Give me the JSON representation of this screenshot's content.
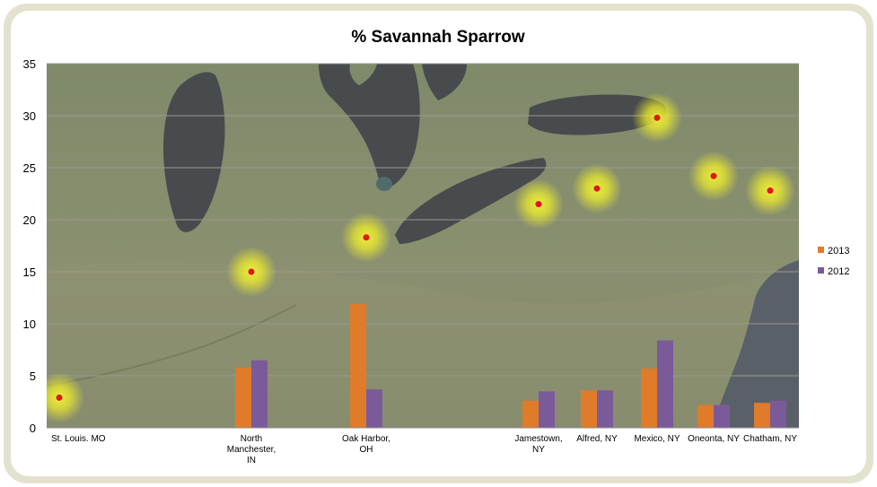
{
  "chart_data": {
    "type": "bar",
    "title": "% Savannah Sparrow",
    "xlabel": "",
    "ylabel": "",
    "ylim": [
      0,
      35
    ],
    "yticks": [
      0,
      5,
      10,
      15,
      20,
      25,
      30,
      35
    ],
    "grid": true,
    "legend_position": "right",
    "background": "satellite map of the Great Lakes region",
    "categories": [
      [
        "St. Louis. MO"
      ],
      [
        "North",
        "Manchester,",
        "IN"
      ],
      [
        "Oak Harbor,",
        "OH"
      ],
      [
        "Jamestown,",
        "NY"
      ],
      [
        "Alfred, NY"
      ],
      [
        "Mexico, NY"
      ],
      [
        "Oneonta, NY"
      ],
      [
        "Chatham, NY"
      ]
    ],
    "series": [
      {
        "name": "2013",
        "color": "#e07b2a",
        "values": [
          null,
          5.8,
          11.9,
          2.6,
          3.6,
          5.7,
          2.2,
          2.4
        ]
      },
      {
        "name": "2012",
        "color": "#7b5a9a",
        "values": [
          null,
          6.5,
          3.7,
          3.5,
          3.6,
          8.4,
          2.2,
          2.6
        ]
      }
    ],
    "map_markers": [
      {
        "location": "St. Louis. MO",
        "y": 2.9
      },
      {
        "location": "North Manchester, IN",
        "y": 15.0
      },
      {
        "location": "Oak Harbor, OH",
        "y": 18.3
      },
      {
        "location": "Jamestown, NY",
        "y": 21.5
      },
      {
        "location": "Alfred, NY",
        "y": 23.0
      },
      {
        "location": "Mexico, NY",
        "y": 29.8
      },
      {
        "location": "Oneonta, NY",
        "y": 24.2
      },
      {
        "location": "Chatham, NY",
        "y": 22.8
      }
    ]
  }
}
